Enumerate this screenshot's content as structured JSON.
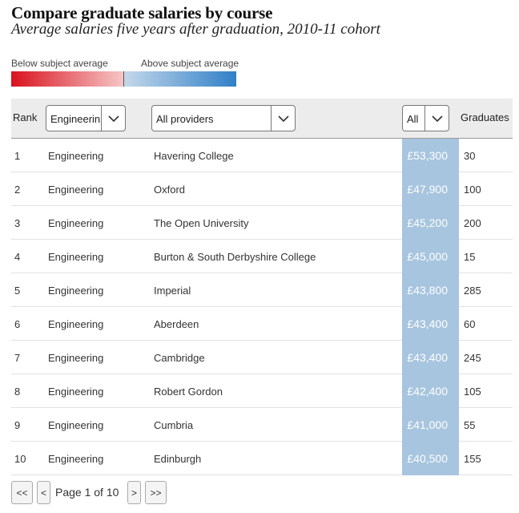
{
  "title": "Compare graduate salaries by course",
  "subtitle": "Average salaries five years after graduation, 2010-11 cohort",
  "legend": {
    "below_label": "Below subject average",
    "above_label": "Above subject average",
    "colors": {
      "below_dark": "#d9121f",
      "below_light": "#f6c6c6",
      "above_light": "#c5d8ea",
      "above_dark": "#2f7fc7"
    }
  },
  "header": {
    "rank_label": "Rank",
    "course_select": "Engineering",
    "provider_select": "All providers",
    "salary_filter_select": "All",
    "graduates_label": "Graduates",
    "dropdown_icon": "chevron-down-icon"
  },
  "rows": [
    {
      "rank": "1",
      "course": "Engineering",
      "provider": "Havering College",
      "salary": "£53,300",
      "graduates": "30"
    },
    {
      "rank": "2",
      "course": "Engineering",
      "provider": "Oxford",
      "salary": "£47,900",
      "graduates": "100"
    },
    {
      "rank": "3",
      "course": "Engineering",
      "provider": "The Open University",
      "salary": "£45,200",
      "graduates": "200"
    },
    {
      "rank": "4",
      "course": "Engineering",
      "provider": "Burton & South Derbyshire College",
      "salary": "£45,000",
      "graduates": "15"
    },
    {
      "rank": "5",
      "course": "Engineering",
      "provider": "Imperial",
      "salary": "£43,800",
      "graduates": "285"
    },
    {
      "rank": "6",
      "course": "Engineering",
      "provider": "Aberdeen",
      "salary": "£43,400",
      "graduates": "60"
    },
    {
      "rank": "7",
      "course": "Engineering",
      "provider": "Cambridge",
      "salary": "£43,400",
      "graduates": "245"
    },
    {
      "rank": "8",
      "course": "Engineering",
      "provider": "Robert Gordon",
      "salary": "£42,400",
      "graduates": "105"
    },
    {
      "rank": "9",
      "course": "Engineering",
      "provider": "Cumbria",
      "salary": "£41,000",
      "graduates": "55"
    },
    {
      "rank": "10",
      "course": "Engineering",
      "provider": "Edinburgh",
      "salary": "£40,500",
      "graduates": "155"
    }
  ],
  "salary_cell_color": "#a7c5df",
  "pagination": {
    "first_label": "<<",
    "prev_label": "<",
    "page_text": "Page 1 of 10",
    "next_label": ">",
    "last_label": ">>"
  }
}
